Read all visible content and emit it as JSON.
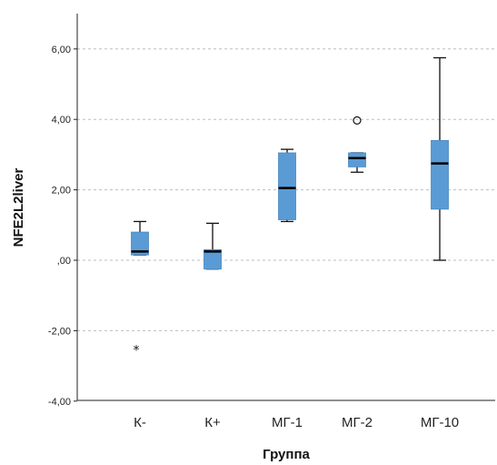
{
  "chart_data": {
    "type": "boxplot",
    "xlabel": "Группа",
    "ylabel": "NFE2L2liver",
    "ylim": [
      -4,
      7
    ],
    "yticks": [
      -4,
      -2,
      0,
      2,
      4,
      6
    ],
    "ytick_labels": [
      "-4,00",
      "-2,00",
      ",00",
      "2,00",
      "4,00",
      "6,00"
    ],
    "grid": "horizontal dashed",
    "box_color": "#5b9bd5",
    "categories": [
      "К-",
      "К+",
      "МГ-1",
      "МГ-2",
      "МГ-10"
    ],
    "boxes": [
      {
        "category": "К-",
        "whisker_low": 0.15,
        "q1": 0.15,
        "median": 0.25,
        "q3": 0.8,
        "whisker_high": 1.1,
        "outliers": [
          {
            "value": -2.55,
            "marker": "star"
          }
        ]
      },
      {
        "category": "К+",
        "whisker_low": -0.25,
        "q1": -0.25,
        "median": 0.25,
        "q3": 0.3,
        "whisker_high": 1.05,
        "outliers": []
      },
      {
        "category": "МГ-1",
        "whisker_low": 1.1,
        "q1": 1.15,
        "median": 2.05,
        "q3": 3.05,
        "whisker_high": 3.15,
        "outliers": []
      },
      {
        "category": "МГ-2",
        "whisker_low": 2.5,
        "q1": 2.65,
        "median": 2.9,
        "q3": 3.05,
        "whisker_high": 3.05,
        "outliers": [
          {
            "value": 3.97,
            "marker": "circle"
          }
        ]
      },
      {
        "category": "МГ-10",
        "whisker_low": 0.0,
        "q1": 1.45,
        "median": 2.75,
        "q3": 3.4,
        "whisker_high": 5.75,
        "outliers": []
      }
    ]
  }
}
